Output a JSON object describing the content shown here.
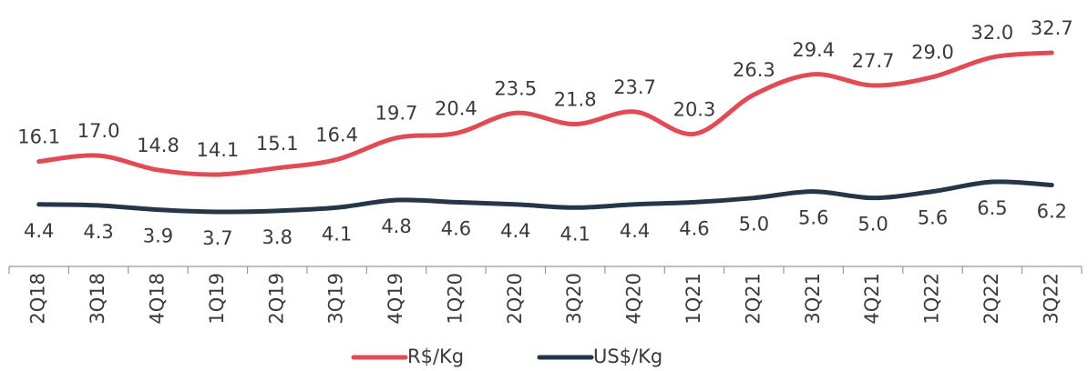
{
  "chart_data": {
    "type": "line",
    "categories": [
      "2Q18",
      "3Q18",
      "4Q18",
      "1Q19",
      "2Q19",
      "3Q19",
      "4Q19",
      "1Q20",
      "2Q20",
      "3Q20",
      "4Q20",
      "1Q21",
      "2Q21",
      "3Q21",
      "4Q21",
      "1Q22",
      "2Q22",
      "3Q22"
    ],
    "series": [
      {
        "name": "R$/Kg",
        "color": "#e04b56",
        "values": [
          16.1,
          17.0,
          14.8,
          14.1,
          15.1,
          16.4,
          19.7,
          20.4,
          23.5,
          21.8,
          23.7,
          20.3,
          26.3,
          29.4,
          27.7,
          29.0,
          32.0,
          32.7
        ],
        "value_labels": [
          "16.1",
          "17.0",
          "14.8",
          "14.1",
          "15.1",
          "16.4",
          "19.7",
          "20.4",
          "23.5",
          "21.8",
          "23.7",
          "20.3",
          "26.3",
          "29.4",
          "27.7",
          "29.0",
          "32.0",
          "32.7"
        ]
      },
      {
        "name": "US$/Kg",
        "color": "#253746",
        "values": [
          4.4,
          4.3,
          3.9,
          3.7,
          3.8,
          4.1,
          4.8,
          4.6,
          4.4,
          4.1,
          4.4,
          4.6,
          5.0,
          5.6,
          5.0,
          5.6,
          6.5,
          6.2
        ],
        "value_labels": [
          "4.4",
          "4.3",
          "3.9",
          "3.7",
          "3.8",
          "4.1",
          "4.8",
          "4.6",
          "4.4",
          "4.1",
          "4.4",
          "4.6",
          "5.0",
          "5.6",
          "5.0",
          "5.6",
          "6.5",
          "6.2"
        ]
      }
    ],
    "legend": "bottom"
  }
}
